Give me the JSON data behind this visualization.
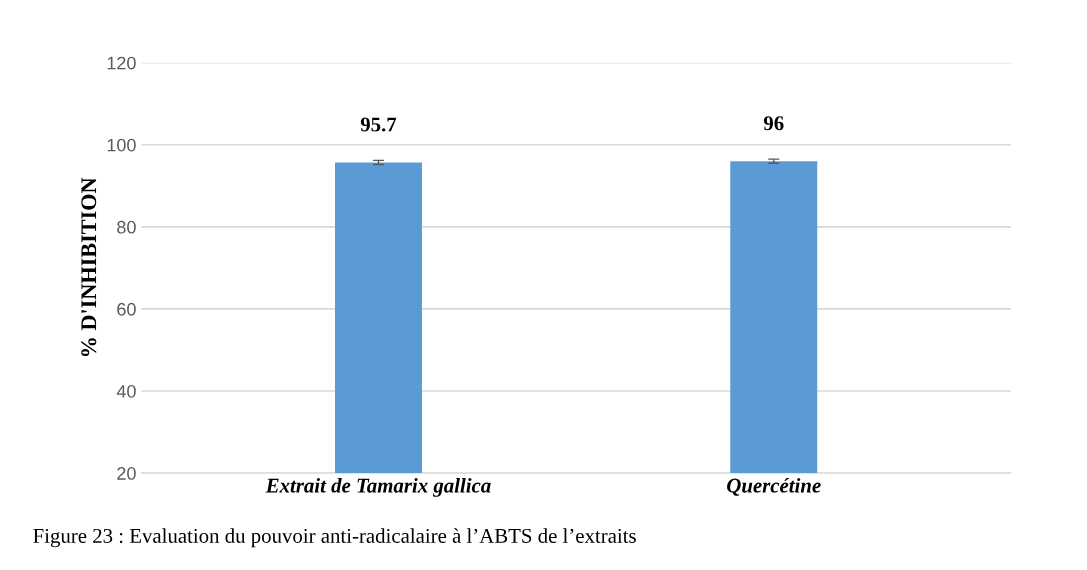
{
  "chart_data": {
    "type": "bar",
    "ylabel": "% D'INHIBITION",
    "categories": [
      "Extrait de Tamarix gallica",
      "Quercétine"
    ],
    "values": [
      95.7,
      96
    ],
    "errors": [
      0.5,
      0.5
    ],
    "color": "#5b9bd5",
    "value_labels": [
      "95.7",
      "96"
    ],
    "ylim": [
      20,
      120
    ],
    "yticks": [
      20,
      40,
      60,
      80,
      100,
      120
    ],
    "grid": "y",
    "annotations": [
      "Figure 23 : Evaluation du pouvoir anti-radicalaire à l’ABTS de l’extraits"
    ]
  }
}
